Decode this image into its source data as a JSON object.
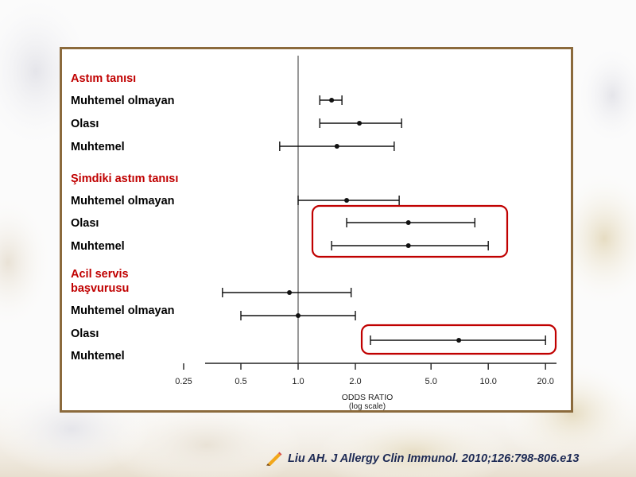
{
  "citation": "Liu AH. J Allergy Clin Immunol. 2010;126:798-806.e13",
  "colors": {
    "group_heading": "#c00000",
    "row_label": "#000000",
    "highlight_box": "#c00000",
    "panel_border": "#8b6a3c",
    "citation_text": "#1d2a55"
  },
  "icons": {
    "citation_marker": "pencil-icon"
  },
  "chart_data": {
    "type": "forest",
    "xlabel": "ODDS RATIO",
    "xlabel_note": "(log scale)",
    "x_scale": "log",
    "xlim": [
      0.25,
      20
    ],
    "xticks": [
      0.25,
      0.5,
      1.0,
      2.0,
      5.0,
      10.0,
      20.0
    ],
    "xtick_labels": [
      "0.25",
      "0.5",
      "1.0",
      "2.0",
      "5.0",
      "10.0",
      "20.0"
    ],
    "reference_line": 1.0,
    "groups": [
      {
        "heading": "Astım tanısı",
        "rows": [
          {
            "label": "Muhtemel olmayan",
            "or": 1.5,
            "lower": 1.3,
            "upper": 1.7,
            "highlighted": false
          },
          {
            "label": "Olası",
            "or": 2.1,
            "lower": 1.3,
            "upper": 3.5,
            "highlighted": false
          },
          {
            "label": "Muhtemel",
            "or": 1.6,
            "lower": 0.8,
            "upper": 3.2,
            "highlighted": false
          }
        ]
      },
      {
        "heading": "Şimdiki astım tanısı",
        "rows": [
          {
            "label": "Muhtemel olmayan",
            "or": 1.8,
            "lower": 1.0,
            "upper": 3.4,
            "highlighted": false
          },
          {
            "label": "Olası",
            "or": 3.8,
            "lower": 1.8,
            "upper": 8.5,
            "highlighted": true
          },
          {
            "label": "Muhtemel",
            "or": 3.8,
            "lower": 1.5,
            "upper": 10.0,
            "highlighted": true
          }
        ]
      },
      {
        "heading": "Acil servis başvurusu",
        "heading_lines": [
          "Acil servis",
          "başvurusu"
        ],
        "rows": [
          {
            "label": "",
            "or": 0.9,
            "lower": 0.4,
            "upper": 1.9,
            "highlighted": false
          },
          {
            "label": "Muhtemel olmayan",
            "or": 1.0,
            "lower": 0.5,
            "upper": 2.0,
            "highlighted": false
          },
          {
            "label": "Olası",
            "or": 7.0,
            "lower": 2.4,
            "upper": 20.0,
            "highlighted": true
          },
          {
            "label": "Muhtemel",
            "highlighted": false
          }
        ]
      }
    ]
  }
}
